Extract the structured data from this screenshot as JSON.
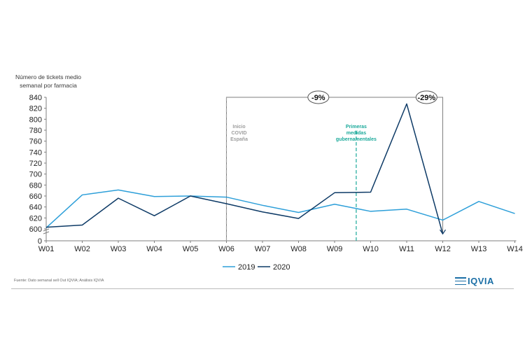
{
  "chart_data": {
    "type": "line",
    "ylabel": "Número de tickets medio semanal por farmacia",
    "categories": [
      "W01",
      "W02",
      "W03",
      "W04",
      "W05",
      "W06",
      "W07",
      "W08",
      "W09",
      "W10",
      "W11",
      "W12",
      "W13",
      "W14"
    ],
    "ylim": [
      0,
      840
    ],
    "yaxis_break": true,
    "yticks": [
      0,
      600,
      620,
      640,
      660,
      680,
      700,
      720,
      740,
      760,
      780,
      800,
      820,
      840
    ],
    "series": [
      {
        "name": "2019",
        "color": "#2d9fd9",
        "values": [
          602,
          662,
          671,
          659,
          660,
          658,
          643,
          630,
          645,
          632,
          636,
          616,
          650,
          628
        ]
      },
      {
        "name": "2020",
        "color": "#0d3a66",
        "values": [
          603,
          607,
          656,
          624,
          660,
          646,
          631,
          619,
          666,
          667,
          828,
          591,
          null,
          null
        ]
      }
    ],
    "annotations": {
      "covid": {
        "lines": [
          "Inicio",
          "COVID",
          "España"
        ],
        "color": "#9e9e9e"
      },
      "medidas": {
        "lines": [
          "Primeras",
          "medidas",
          "gubernamentales"
        ],
        "color": "#1aa99a"
      },
      "pct1": "-9%",
      "pct2": "-29%"
    },
    "legend_position": "bottom-center"
  },
  "source": "Fuente: Dato semanal sell Out IQVIA; Análisis IQVIA",
  "logo": "IQVIA"
}
